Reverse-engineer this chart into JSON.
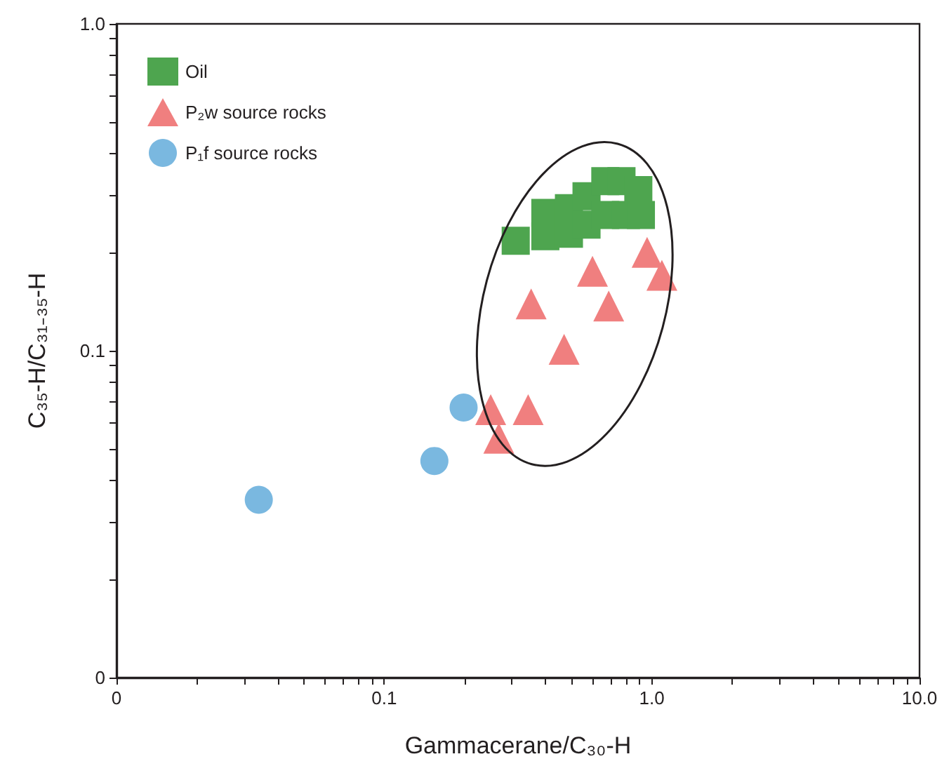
{
  "chart_data": {
    "type": "scatter",
    "xlabel": "Gammacerane/C₃₀-H",
    "ylabel": "C₃₅-H/C₃₁₋₃₅-H",
    "log": "xy",
    "grid": false,
    "legend": "top left",
    "xlim": [
      0.01,
      10
    ],
    "ylim": [
      0.01,
      1
    ],
    "xticks": [
      {
        "value": 0.01,
        "label": "0"
      },
      {
        "value": 0.02,
        "label": null
      },
      {
        "value": 0.03,
        "label": null
      },
      {
        "value": 0.04,
        "label": null
      },
      {
        "value": 0.05,
        "label": null
      },
      {
        "value": 0.06,
        "label": null
      },
      {
        "value": 0.07,
        "label": null
      },
      {
        "value": 0.08,
        "label": null
      },
      {
        "value": 0.09,
        "label": null
      },
      {
        "value": 0.1,
        "label": "0.1"
      },
      {
        "value": 0.2,
        "label": null
      },
      {
        "value": 0.3,
        "label": null
      },
      {
        "value": 0.4,
        "label": null
      },
      {
        "value": 0.5,
        "label": null
      },
      {
        "value": 0.6,
        "label": null
      },
      {
        "value": 0.7,
        "label": null
      },
      {
        "value": 0.8,
        "label": null
      },
      {
        "value": 0.9,
        "label": null
      },
      {
        "value": 1,
        "label": "1.0"
      },
      {
        "value": 2,
        "label": null
      },
      {
        "value": 3,
        "label": null
      },
      {
        "value": 4,
        "label": null
      },
      {
        "value": 5,
        "label": null
      },
      {
        "value": 6,
        "label": null
      },
      {
        "value": 7,
        "label": null
      },
      {
        "value": 8,
        "label": null
      },
      {
        "value": 9,
        "label": null
      },
      {
        "value": 10,
        "label": "10.0"
      }
    ],
    "yticks": [
      {
        "value": 0.01,
        "label": "0"
      },
      {
        "value": 0.02,
        "label": null
      },
      {
        "value": 0.03,
        "label": null
      },
      {
        "value": 0.04,
        "label": null
      },
      {
        "value": 0.05,
        "label": null
      },
      {
        "value": 0.06,
        "label": null
      },
      {
        "value": 0.07,
        "label": null
      },
      {
        "value": 0.08,
        "label": null
      },
      {
        "value": 0.09,
        "label": null
      },
      {
        "value": 0.1,
        "label": "0.1"
      },
      {
        "value": 0.2,
        "label": null
      },
      {
        "value": 0.3,
        "label": null
      },
      {
        "value": 0.4,
        "label": null
      },
      {
        "value": 0.5,
        "label": null
      },
      {
        "value": 0.6,
        "label": null
      },
      {
        "value": 0.7,
        "label": null
      },
      {
        "value": 0.8,
        "label": null
      },
      {
        "value": 0.9,
        "label": null
      },
      {
        "value": 1,
        "label": "1.0"
      }
    ],
    "series": [
      {
        "name": "Oil",
        "color": "#4ea54f",
        "marker": "square",
        "x": [
          0.31,
          0.4,
          0.4,
          0.49,
          0.49,
          0.57,
          0.57,
          0.67,
          0.67,
          0.77,
          0.8,
          0.89,
          0.91
        ],
        "values": [
          0.217,
          0.264,
          0.224,
          0.273,
          0.228,
          0.297,
          0.243,
          0.33,
          0.26,
          0.33,
          0.26,
          0.31,
          0.26
        ]
      },
      {
        "name": "P₂w source rocks",
        "color": "#f07f7f",
        "marker": "triangle",
        "x": [
          0.25,
          0.268,
          0.345,
          0.354,
          0.47,
          0.6,
          0.69,
          0.96,
          1.09
        ],
        "values": [
          0.066,
          0.054,
          0.066,
          0.139,
          0.101,
          0.175,
          0.137,
          0.2,
          0.17
        ]
      },
      {
        "name": "P₁f source rocks",
        "color": "#7ab8e0",
        "marker": "circle",
        "x": [
          0.034,
          0.154,
          0.198
        ],
        "values": [
          0.035,
          0.046,
          0.067
        ]
      }
    ]
  }
}
